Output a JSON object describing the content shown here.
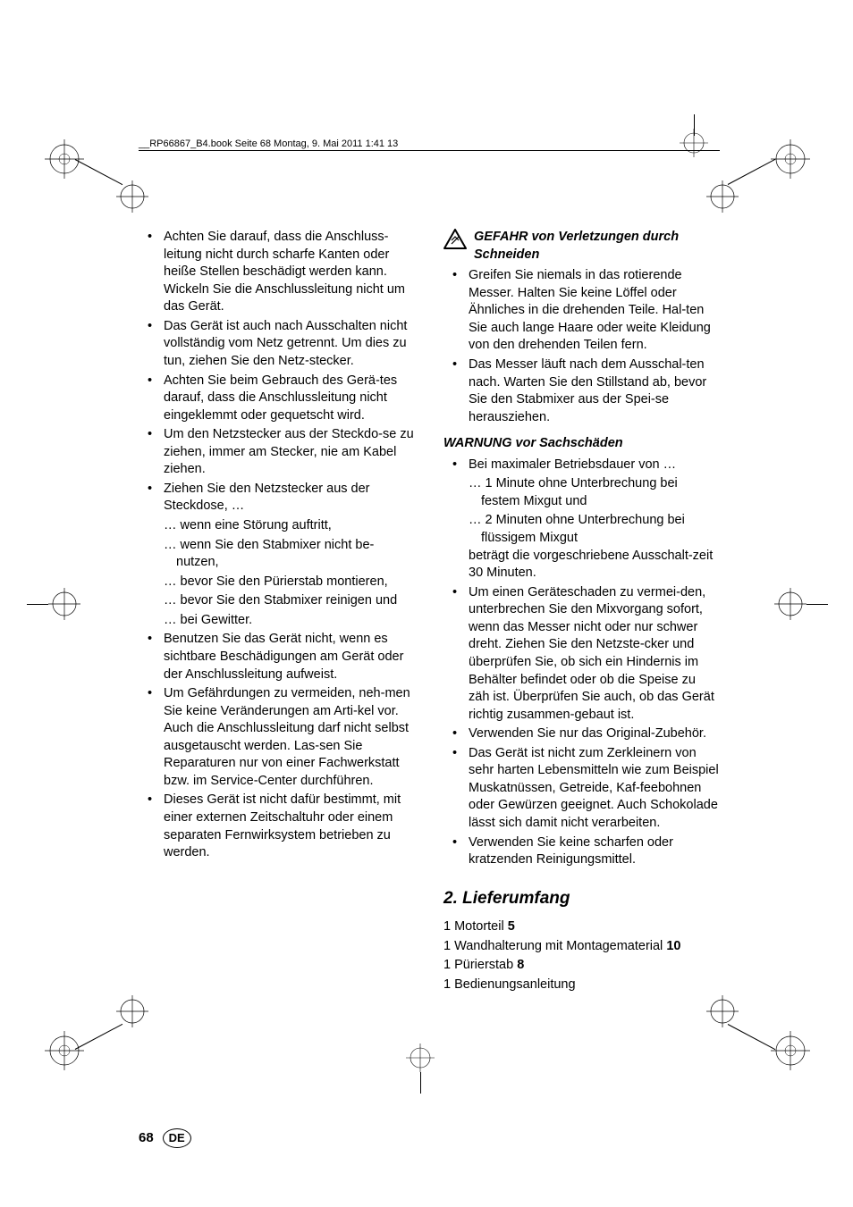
{
  "header": "__RP66867_B4.book  Seite 68  Montag, 9. Mai 2011  1:41 13",
  "left_bullets": [
    {
      "text": "Achten Sie darauf, dass die Anschluss-leitung nicht durch scharfe Kanten oder heiße Stellen beschädigt werden kann. Wickeln Sie die Anschlussleitung nicht um das Gerät."
    },
    {
      "text": "Das Gerät ist auch nach Ausschalten nicht vollständig vom Netz getrennt. Um dies zu tun, ziehen Sie den Netz-stecker."
    },
    {
      "text": "Achten Sie beim Gebrauch des Gerä-tes darauf, dass die Anschlussleitung nicht eingeklemmt oder gequetscht wird."
    },
    {
      "text": "Um den Netzstecker aus der Steckdo-se zu ziehen, immer am Stecker, nie am Kabel ziehen."
    },
    {
      "text": "Ziehen Sie den Netzstecker aus der Steckdose, …",
      "subs": [
        "… wenn eine Störung auftritt,",
        "… wenn Sie den Stabmixer nicht be-nutzen,",
        "… bevor Sie den Pürierstab montieren,",
        "… bevor Sie den Stabmixer reinigen und",
        "… bei Gewitter."
      ]
    },
    {
      "text": "Benutzen Sie das Gerät nicht, wenn es sichtbare Beschädigungen am Gerät oder der Anschlussleitung aufweist."
    },
    {
      "text": "Um Gefährdungen zu vermeiden, neh-men Sie keine Veränderungen am Arti-kel vor. Auch die Anschlussleitung darf nicht selbst ausgetauscht werden. Las-sen Sie Reparaturen nur von einer Fachwerkstatt bzw. im Service-Center durchführen."
    },
    {
      "text": "Dieses Gerät ist nicht dafür bestimmt, mit einer externen Zeitschaltuhr oder einem separaten Fernwirksystem betrieben zu werden."
    }
  ],
  "danger_title": "GEFAHR von Verletzungen durch Schneiden",
  "danger_bullets": [
    "Greifen Sie niemals in das rotierende Messer. Halten Sie keine Löffel oder Ähnliches in die drehenden Teile. Hal-ten Sie auch lange Haare oder weite Kleidung von den drehenden Teilen fern.",
    "Das Messer läuft nach dem Ausschal-ten nach. Warten Sie den Stillstand ab, bevor Sie den Stabmixer aus der Spei-se herausziehen."
  ],
  "warning_title": "WARNUNG vor Sachschäden",
  "warning_bullets": [
    {
      "text": "Bei maximaler Betriebsdauer von …",
      "subs": [
        "… 1 Minute ohne Unterbrechung bei festem Mixgut und",
        "… 2 Minuten ohne Unterbrechung bei flüssigem Mixgut"
      ],
      "tail": "beträgt die vorgeschriebene Ausschalt-zeit 30 Minuten."
    },
    {
      "text": "Um einen Geräteschaden zu vermei-den, unterbrechen Sie den Mixvorgang sofort, wenn das Messer nicht oder nur schwer dreht. Ziehen Sie den Netzste-cker und überprüfen Sie, ob sich ein Hindernis im Behälter befindet oder ob die Speise zu zäh ist. Überprüfen Sie auch, ob das Gerät richtig zusammen-gebaut ist."
    },
    {
      "text": "Verwenden Sie nur das Original-Zubehör."
    },
    {
      "text": "Das Gerät ist nicht zum Zerkleinern von sehr harten Lebensmitteln wie zum Beispiel Muskatnüssen, Getreide, Kaf-feebohnen oder Gewürzen geeignet. Auch Schokolade lässt sich damit nicht verarbeiten."
    },
    {
      "text": "Verwenden Sie keine scharfen oder kratzenden Reinigungsmittel."
    }
  ],
  "section_heading": "2.   Lieferumfang",
  "delivery": [
    {
      "pre": "1 Motorteil ",
      "bold": "5"
    },
    {
      "pre": "1 Wandhalterung mit Montagematerial ",
      "bold": "10"
    },
    {
      "pre": "1 Pürierstab ",
      "bold": "8"
    },
    {
      "pre": "1 Bedienungsanleitung",
      "bold": ""
    }
  ],
  "page_number": "68",
  "lang": "DE"
}
